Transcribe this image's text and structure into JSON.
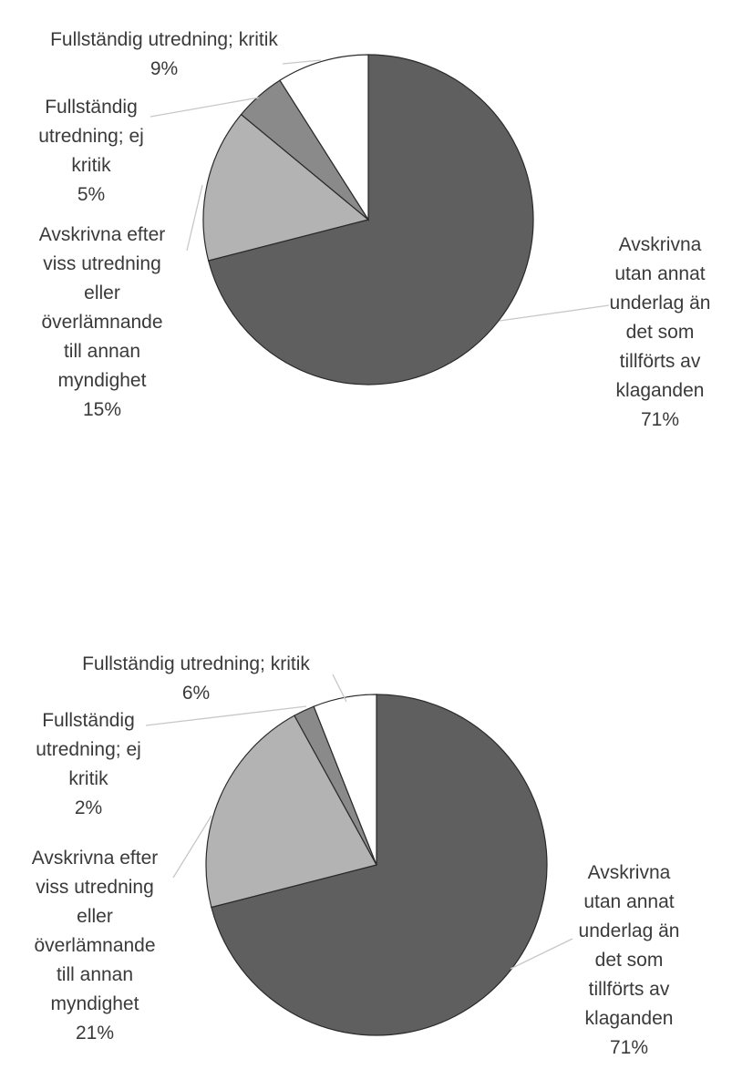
{
  "colors": {
    "Avskrivna utan annat underlag än det som tillförts av klaganden": "#5f5f5f",
    "Avskrivna efter viss utredning eller överlämnande till annan myndighet": "#b3b3b3",
    "Fullständig utredning; ej kritik": "#8a8a8a",
    "Fullständig utredning; kritik": "#ffffff"
  },
  "chart_data": [
    {
      "type": "pie",
      "slices": [
        {
          "label": "Avskrivna utan annat underlag än det som tillförts av klaganden",
          "value": 71,
          "value_label": "71%"
        },
        {
          "label": "Avskrivna efter viss utredning eller överlämnande till annan myndighet",
          "value": 15,
          "value_label": "15%"
        },
        {
          "label": "Fullständig utredning; ej kritik",
          "value": 5,
          "value_label": "5%"
        },
        {
          "label": "Fullständig utredning; kritik",
          "value": 9,
          "value_label": "9%"
        }
      ]
    },
    {
      "type": "pie",
      "slices": [
        {
          "label": "Avskrivna utan annat underlag än det som tillförts av klaganden",
          "value": 71,
          "value_label": "71%"
        },
        {
          "label": "Avskrivna efter viss utredning eller överlämnande till annan myndighet",
          "value": 21,
          "value_label": "21%"
        },
        {
          "label": "Fullständig utredning; ej kritik",
          "value": 2,
          "value_label": "2%"
        },
        {
          "label": "Fullständig utredning; kritik",
          "value": 6,
          "value_label": "6%"
        }
      ]
    }
  ]
}
